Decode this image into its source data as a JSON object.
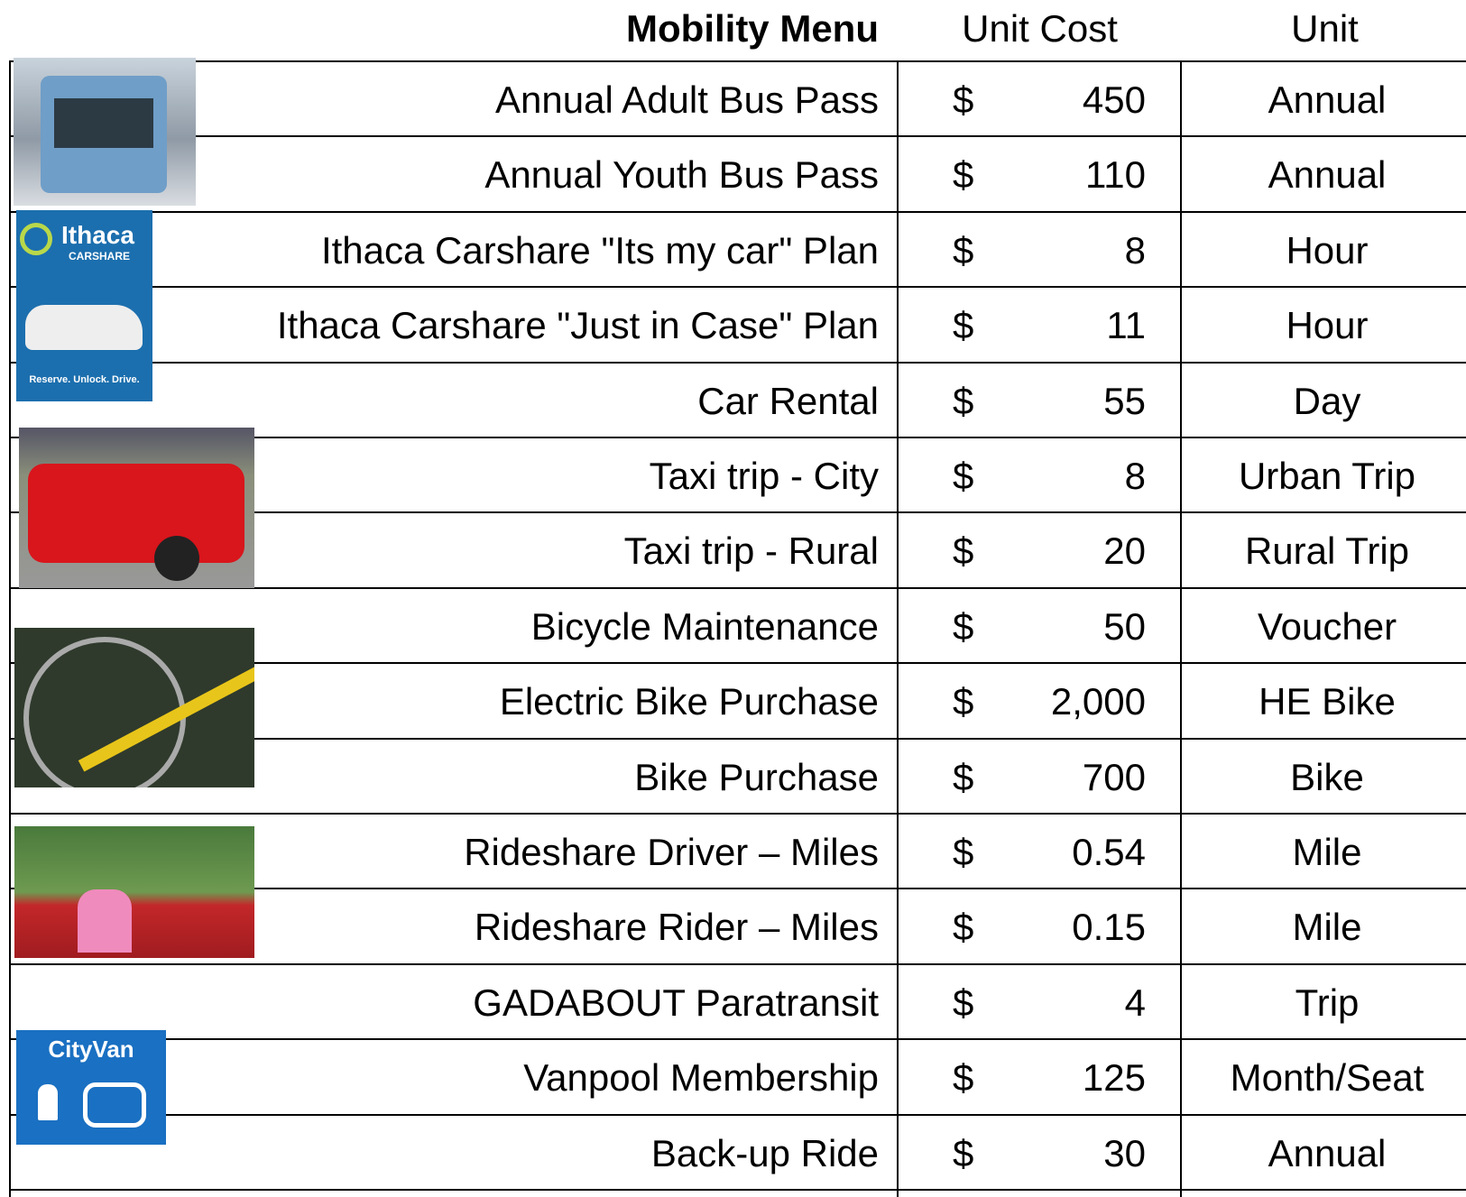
{
  "header": {
    "title": "Mobility Menu",
    "cost": "Unit Cost",
    "unit": "Unit"
  },
  "rows": [
    {
      "item": "Annual Adult Bus Pass",
      "currency": "$",
      "cost": "450",
      "unit": "Annual"
    },
    {
      "item": "Annual Youth Bus Pass",
      "currency": "$",
      "cost": "110",
      "unit": "Annual"
    },
    {
      "item": "Ithaca Carshare \"Its my car\" Plan",
      "currency": "$",
      "cost": "8",
      "unit": "Hour"
    },
    {
      "item": "Ithaca Carshare \"Just in Case\" Plan",
      "currency": "$",
      "cost": "11",
      "unit": "Hour"
    },
    {
      "item": "Car Rental",
      "currency": "$",
      "cost": "55",
      "unit": "Day"
    },
    {
      "item": "Taxi trip - City",
      "currency": "$",
      "cost": "8",
      "unit": "Urban Trip"
    },
    {
      "item": "Taxi trip - Rural",
      "currency": "$",
      "cost": "20",
      "unit": "Rural Trip"
    },
    {
      "item": "Bicycle Maintenance",
      "currency": "$",
      "cost": "50",
      "unit": "Voucher"
    },
    {
      "item": "Electric Bike Purchase",
      "currency": "$",
      "cost": "2,000",
      "unit": "HE Bike"
    },
    {
      "item": "Bike Purchase",
      "currency": "$",
      "cost": "700",
      "unit": "Bike"
    },
    {
      "item": "Rideshare Driver – Miles",
      "currency": "$",
      "cost": "0.54",
      "unit": "Mile"
    },
    {
      "item": "Rideshare Rider – Miles",
      "currency": "$",
      "cost": "0.15",
      "unit": "Mile"
    },
    {
      "item": "GADABOUT Paratransit",
      "currency": "$",
      "cost": "4",
      "unit": "Trip"
    },
    {
      "item": "Vanpool Membership",
      "currency": "$",
      "cost": "125",
      "unit": "Month/Seat"
    },
    {
      "item": "Back-up Ride",
      "currency": "$",
      "cost": "30",
      "unit": "Annual"
    }
  ],
  "logos": {
    "carshare": {
      "name": "Ithaca",
      "sub": "CARSHARE",
      "slogan": "Reserve. Unlock. Drive."
    },
    "cityvan": "CityVan"
  }
}
